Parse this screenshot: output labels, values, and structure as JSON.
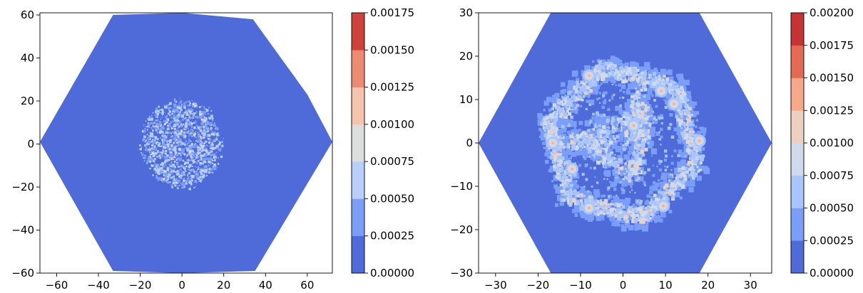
{
  "chart_data": [
    {
      "type": "heatmap",
      "subtype": "filled-contour",
      "title": "",
      "xlabel": "",
      "ylabel": "",
      "xlim": [
        -68,
        72
      ],
      "ylim": [
        -60,
        61
      ],
      "x_ticks": [
        -60,
        -40,
        -20,
        0,
        20,
        40,
        60
      ],
      "x_tick_labels": [
        "−60",
        "−40",
        "−20",
        "0",
        "20",
        "40",
        "60"
      ],
      "y_ticks": [
        -60,
        -40,
        -20,
        0,
        20,
        40,
        60
      ],
      "y_tick_labels": [
        "−60",
        "−40",
        "−20",
        "0",
        "20",
        "40",
        "60"
      ],
      "domain_polygon": [
        [
          -68,
          1
        ],
        [
          -33,
          60
        ],
        [
          0,
          61
        ],
        [
          34,
          58
        ],
        [
          60,
          23
        ],
        [
          72,
          1
        ],
        [
          35,
          -59
        ],
        [
          0,
          -60
        ],
        [
          -33,
          -59
        ]
      ],
      "pattern": "roughly circular speckled patch of values 0.00025–0.00075, radius ~20, centered near origin",
      "colorbar": {
        "levels": [
          0.0,
          0.00025,
          0.0005,
          0.00075,
          0.001,
          0.00125,
          0.0015,
          0.00175
        ],
        "tick_labels": [
          "0.00000",
          "0.00025",
          "0.00050",
          "0.00075",
          "0.00100",
          "0.00125",
          "0.00150",
          "0.00175"
        ],
        "colors": [
          "#4f6ad9",
          "#7b9ff9",
          "#b7cff9",
          "#dcdddd",
          "#f5c4ac",
          "#ec8b6f",
          "#cd423b"
        ]
      },
      "background_fill": "#4f6ad9"
    },
    {
      "type": "heatmap",
      "subtype": "filled-contour",
      "title": "",
      "xlabel": "",
      "ylabel": "",
      "xlim": [
        -34,
        35
      ],
      "ylim": [
        -30,
        30
      ],
      "x_ticks": [
        -30,
        -20,
        -10,
        0,
        10,
        20,
        30
      ],
      "x_tick_labels": [
        "−30",
        "−20",
        "−10",
        "0",
        "10",
        "20",
        "30"
      ],
      "y_ticks": [
        -30,
        -20,
        -10,
        0,
        10,
        20,
        30
      ],
      "y_tick_labels": [
        "−30",
        "−20",
        "−10",
        "0",
        "10",
        "20",
        "30"
      ],
      "domain_polygon": [
        [
          -34,
          0
        ],
        [
          -17,
          30
        ],
        [
          18,
          30
        ],
        [
          35,
          0
        ],
        [
          18,
          -30
        ],
        [
          -17,
          -30
        ]
      ],
      "pattern": "hexagonal ring of elevated values with triangular inner structure; hotspots near hexagon vertices",
      "hotspots": [
        [
          -8,
          15.5
        ],
        [
          9,
          12
        ],
        [
          12,
          9
        ],
        [
          18,
          0.5
        ],
        [
          -16.5,
          0
        ],
        [
          -8,
          -15
        ],
        [
          9.5,
          -14.5
        ],
        [
          2.5,
          4
        ],
        [
          -12,
          -6
        ]
      ],
      "colorbar": {
        "levels": [
          0.0,
          0.00025,
          0.0005,
          0.00075,
          0.001,
          0.00125,
          0.0015,
          0.00175,
          0.002
        ],
        "tick_labels": [
          "0.00000",
          "0.00025",
          "0.00050",
          "0.00075",
          "0.00100",
          "0.00125",
          "0.00150",
          "0.00175",
          "0.00200"
        ],
        "colors": [
          "#4f6ad9",
          "#7b9ff9",
          "#a8c5fe",
          "#cfdaea",
          "#eed0c0",
          "#f7a889",
          "#e36b54",
          "#c53334"
        ]
      },
      "background_fill": "#4f6ad9"
    }
  ]
}
